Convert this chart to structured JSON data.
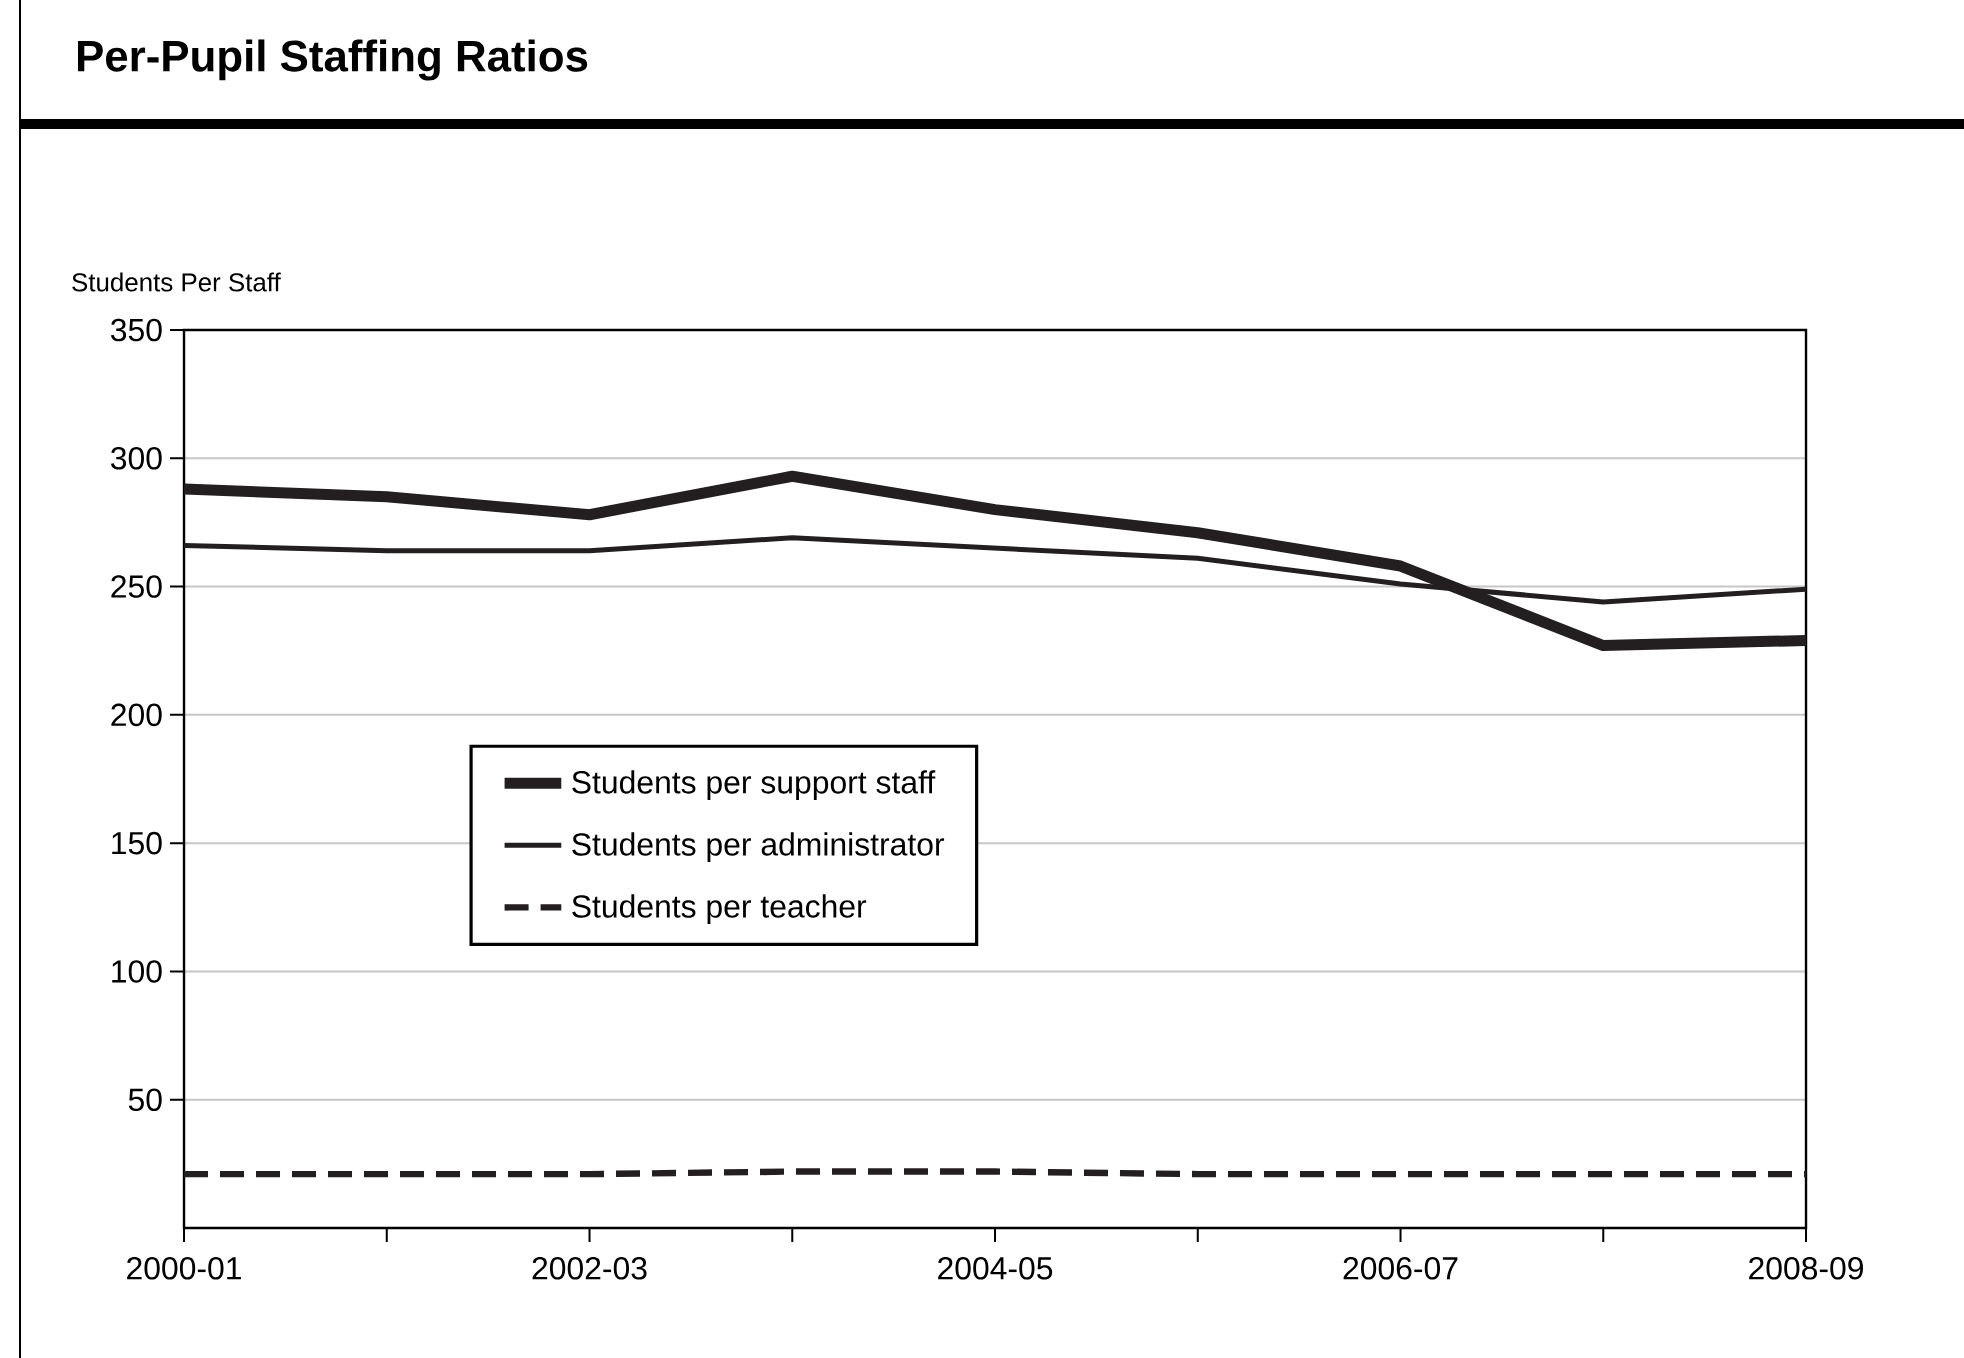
{
  "chart_data": {
    "type": "line",
    "title": "Per-Pupil Staffing Ratios",
    "ylabel": "Students Per Staff",
    "categories": [
      "2000-01",
      null,
      "2002-03",
      null,
      "2004-05",
      null,
      "2006-07",
      null,
      "2008-09"
    ],
    "series": [
      {
        "name": "Students per support staff",
        "color": "#231f20",
        "line_style": "solid",
        "values": [
          288,
          285,
          278,
          293,
          280,
          271,
          258,
          227,
          229
        ]
      },
      {
        "name": "Students per administrator",
        "color": "#231f20",
        "line_style": "solid",
        "values": [
          266,
          264,
          264,
          269,
          265,
          261,
          251,
          244,
          249
        ]
      },
      {
        "name": "Students per teacher",
        "color": "#231f20",
        "line_style": "dashed",
        "values": [
          21,
          21,
          21,
          22,
          22,
          21,
          21,
          21,
          21
        ]
      }
    ],
    "ylim": [
      0,
      350
    ],
    "yticks": [
      50,
      100,
      150,
      200,
      250,
      300,
      350
    ],
    "grid": "y",
    "legend": "center",
    "marker": "none"
  }
}
